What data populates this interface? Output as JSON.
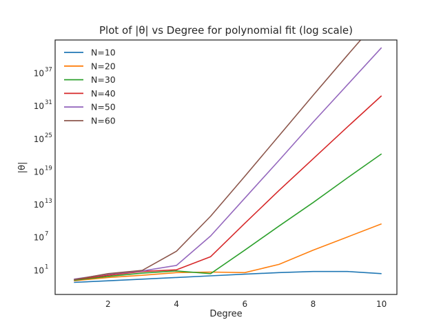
{
  "chart_data": {
    "type": "line",
    "title": "Plot of |θ| vs Degree for polynomial fit (log scale)",
    "xlabel": "Degree",
    "ylabel": "|θ|",
    "x": [
      1,
      2,
      3,
      4,
      5,
      6,
      7,
      8,
      9,
      10
    ],
    "xlim": [
      0.45,
      10.45
    ],
    "xticks": [
      2,
      4,
      6,
      8,
      10
    ],
    "yscale": "log",
    "ylim_log10": [
      -3.5,
      43
    ],
    "yticks": [
      {
        "base": "10",
        "exp": "1"
      },
      {
        "base": "10",
        "exp": "7"
      },
      {
        "base": "10",
        "exp": "13"
      },
      {
        "base": "10",
        "exp": "19"
      },
      {
        "base": "10",
        "exp": "25"
      },
      {
        "base": "10",
        "exp": "31"
      },
      {
        "base": "10",
        "exp": "37"
      }
    ],
    "ytick_values_log10": [
      1,
      7,
      13,
      19,
      25,
      31,
      37
    ],
    "grid": false,
    "legend_position": "top-left",
    "series": [
      {
        "name": "N=10",
        "color": "#1f77b4",
        "log10_values": [
          -1.3,
          -1.0,
          -0.7,
          -0.4,
          -0.1,
          0.2,
          0.5,
          0.7,
          0.7,
          0.3
        ]
      },
      {
        "name": "N=20",
        "color": "#ff7f0e",
        "log10_values": [
          -1.0,
          -0.4,
          0.0,
          0.5,
          0.6,
          0.5,
          2.0,
          4.6,
          7.0,
          9.4
        ]
      },
      {
        "name": "N=30",
        "color": "#2ca02c",
        "log10_values": [
          -0.9,
          -0.2,
          0.4,
          0.8,
          0.3,
          4.6,
          9.0,
          13.3,
          17.8,
          22.2
        ]
      },
      {
        "name": "N=40",
        "color": "#d62728",
        "log10_values": [
          -0.8,
          0.0,
          0.7,
          1.0,
          3.4,
          9.5,
          15.5,
          21.3,
          27.1,
          32.8
        ]
      },
      {
        "name": "N=50",
        "color": "#9467bd",
        "log10_values": [
          -0.7,
          0.2,
          0.8,
          1.8,
          7.2,
          14.1,
          21.0,
          28.0,
          34.8,
          41.6
        ]
      },
      {
        "name": "N=60",
        "color": "#8c564b",
        "log10_values": [
          -0.8,
          0.3,
          0.9,
          4.4,
          10.8,
          18.1,
          25.5,
          32.9,
          40.2,
          47.4
        ]
      }
    ]
  }
}
